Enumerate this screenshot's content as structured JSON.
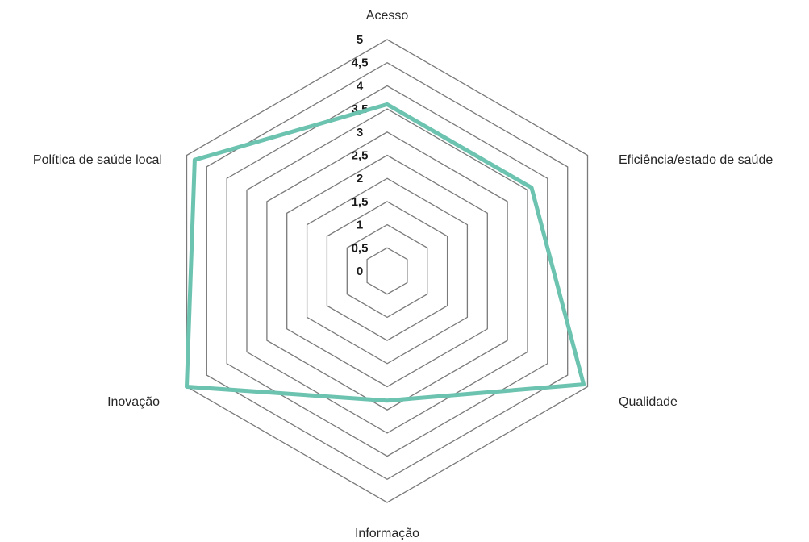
{
  "chart_data": {
    "type": "radar",
    "axes": [
      "Acesso",
      "Eficiência/estado de saúde",
      "Qualidade",
      "Informação",
      "Inovação",
      "Política de saúde local"
    ],
    "ticks": [
      "0",
      "0,5",
      "1",
      "1,5",
      "2",
      "2,5",
      "3",
      "3,5",
      "4",
      "4,5",
      "5"
    ],
    "range": [
      0,
      5
    ],
    "grid": true,
    "legend": "none",
    "series": [
      {
        "values": [
          3.6,
          3.6,
          4.9,
          2.8,
          5.0,
          4.8
        ],
        "color": "#6cc3b0"
      }
    ],
    "grid_color": "#7a7a7a"
  }
}
